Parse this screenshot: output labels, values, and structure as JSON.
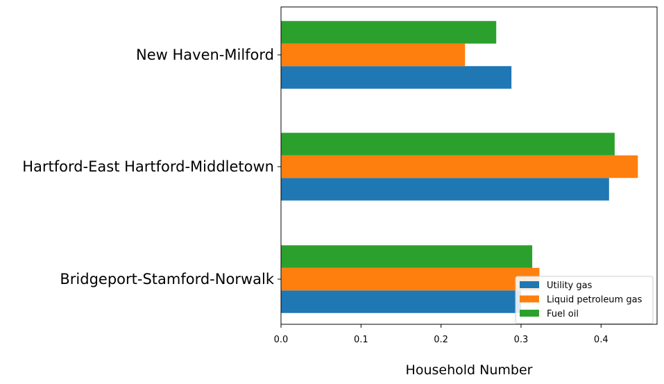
{
  "chart_data": {
    "type": "bar",
    "orientation": "horizontal",
    "categories": [
      "Bridgeport-Stamford-Norwalk",
      "Hartford-East Hartford-Middletown",
      "New Haven-Milford"
    ],
    "series": [
      {
        "name": "Utility gas",
        "values": [
          0.3,
          0.41,
          0.288
        ],
        "color": "#1f77b4"
      },
      {
        "name": "Liquid petroleum gas",
        "values": [
          0.323,
          0.446,
          0.23
        ],
        "color": "#ff7f0e"
      },
      {
        "name": "Fuel oil",
        "values": [
          0.314,
          0.417,
          0.269
        ],
        "color": "#2ca02c"
      }
    ],
    "title": "",
    "xlabel": "Household Number",
    "ylabel": "",
    "xlim": [
      0.0,
      0.47
    ],
    "xticks": [
      "0.0",
      "0.1",
      "0.2",
      "0.3",
      "0.4"
    ],
    "grid": false,
    "legend_position": "lower-right"
  }
}
